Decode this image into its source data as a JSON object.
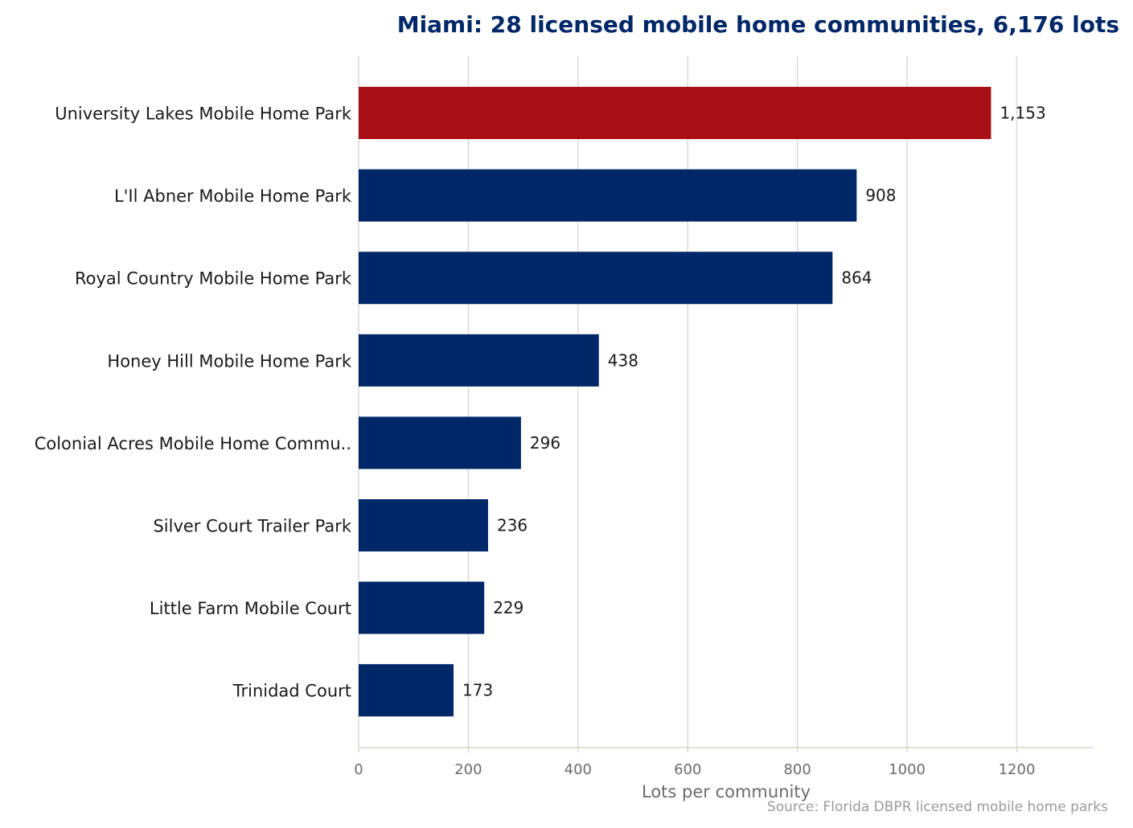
{
  "chart_data": {
    "type": "bar",
    "orientation": "horizontal",
    "title": "Miami: 28 licensed mobile home communities, 6,176 lots",
    "xlabel": "Lots per community",
    "ylabel": "",
    "xlim": [
      0,
      1340
    ],
    "xticks": [
      0,
      200,
      400,
      600,
      800,
      1000,
      1200
    ],
    "xtick_labels": [
      "0",
      "200",
      "400",
      "600",
      "800",
      "1000",
      "1200"
    ],
    "grid": "vertical",
    "categories": [
      "University Lakes Mobile Home Park",
      "L'Il Abner Mobile Home Park",
      "Royal Country Mobile Home Park",
      "Honey Hill Mobile Home Park",
      "Colonial Acres Mobile Home Commu..",
      "Silver Court Trailer Park",
      "Little Farm Mobile Court",
      "Trinidad Court"
    ],
    "values": [
      1153,
      908,
      864,
      438,
      296,
      236,
      229,
      173
    ],
    "value_labels": [
      "1,153",
      "908",
      "864",
      "438",
      "296",
      "236",
      "229",
      "173"
    ],
    "highlight_index": 0,
    "colors": {
      "highlight": "#a81016",
      "bar": "#002868",
      "grid": "#d9d9d9",
      "axis": "#d9d6cc"
    },
    "source": "Source: Florida DBPR licensed mobile home parks"
  }
}
